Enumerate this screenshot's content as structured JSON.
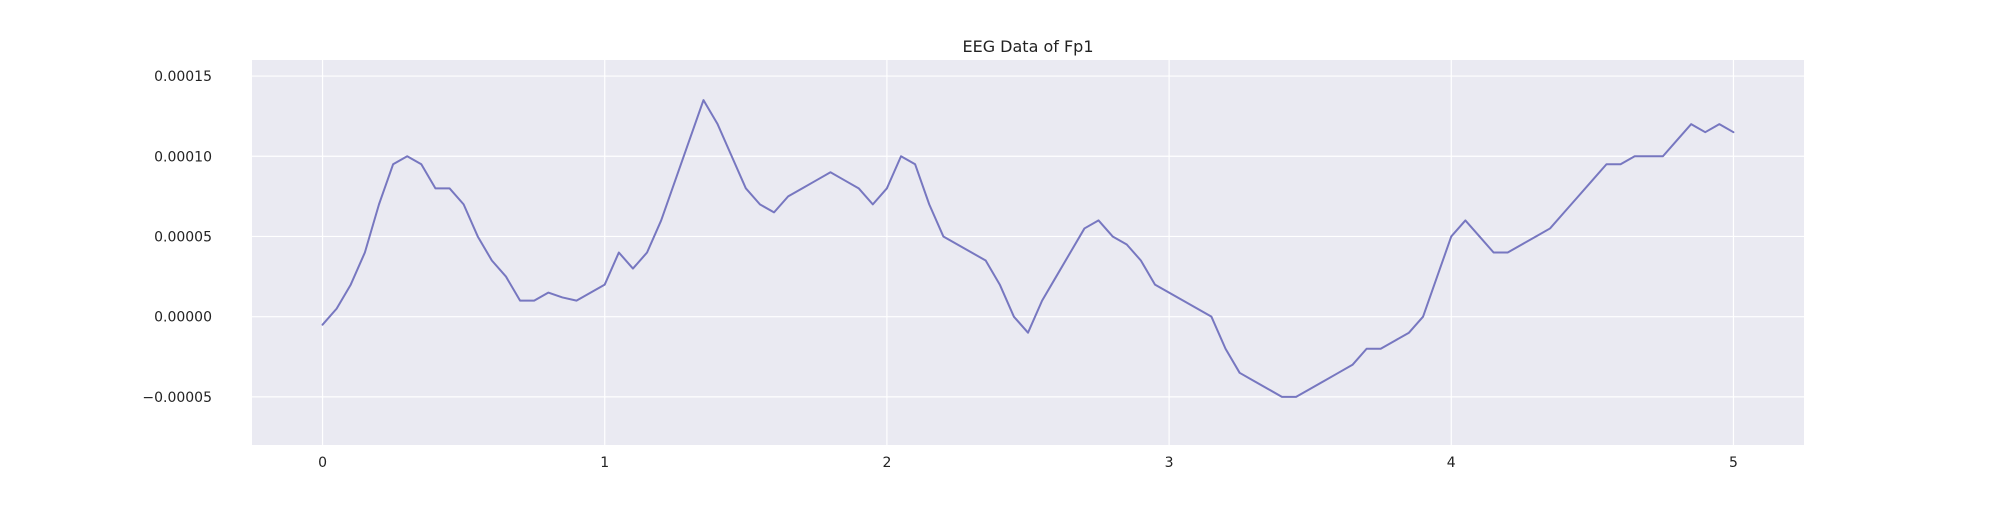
{
  "chart_data": {
    "type": "line",
    "title": "EEG Data of Fp1",
    "xlabel": "",
    "ylabel": "",
    "xlim": [
      -0.25,
      5.25
    ],
    "ylim": [
      -8e-05,
      0.00016
    ],
    "grid": true,
    "legend": "none",
    "x_ticks": [
      0,
      1,
      2,
      3,
      4,
      5
    ],
    "x_tick_labels": [
      "0",
      "1",
      "2",
      "3",
      "4",
      "5"
    ],
    "y_ticks": [
      -5e-05,
      0,
      5e-05,
      0.0001,
      0.00015
    ],
    "y_tick_labels": [
      "−0.00005",
      "0.00000",
      "0.00005",
      "0.00010",
      "0.00015"
    ],
    "colors": {
      "line": "#7777c0",
      "plot_background": "#eaeaf2",
      "grid": "#ffffff"
    },
    "series": [
      {
        "x": [
          0,
          0.05,
          0.1,
          0.15,
          0.2,
          0.25,
          0.3,
          0.35,
          0.4,
          0.45,
          0.5,
          0.55,
          0.6,
          0.65,
          0.7,
          0.75,
          0.8,
          0.85,
          0.9,
          0.95,
          1.0,
          1.05,
          1.1,
          1.15,
          1.2,
          1.25,
          1.3,
          1.35,
          1.4,
          1.45,
          1.5,
          1.55,
          1.6,
          1.65,
          1.7,
          1.75,
          1.8,
          1.85,
          1.9,
          1.95,
          2.0,
          2.05,
          2.1,
          2.15,
          2.2,
          2.25,
          2.3,
          2.35,
          2.4,
          2.45,
          2.5,
          2.55,
          2.6,
          2.65,
          2.7,
          2.75,
          2.8,
          2.85,
          2.9,
          2.95,
          3.0,
          3.05,
          3.1,
          3.15,
          3.2,
          3.25,
          3.3,
          3.35,
          3.4,
          3.45,
          3.5,
          3.55,
          3.6,
          3.65,
          3.7,
          3.75,
          3.8,
          3.85,
          3.9,
          3.95,
          4.0,
          4.05,
          4.1,
          4.15,
          4.2,
          4.25,
          4.3,
          4.35,
          4.4,
          4.45,
          4.5,
          4.55,
          4.6,
          4.65,
          4.7,
          4.75,
          4.8,
          4.85,
          4.9,
          4.95,
          5.0
        ],
        "values": [
          -5e-06,
          5e-06,
          2e-05,
          4e-05,
          7e-05,
          9.5e-05,
          0.0001,
          9.5e-05,
          8e-05,
          8e-05,
          7e-05,
          5e-05,
          3.5e-05,
          2.5e-05,
          1e-05,
          1e-05,
          1.5e-05,
          1.2e-05,
          1e-05,
          1.5e-05,
          2e-05,
          4e-05,
          3e-05,
          4e-05,
          6e-05,
          8.5e-05,
          0.00011,
          0.000135,
          0.00012,
          0.0001,
          8e-05,
          7e-05,
          6.5e-05,
          7.5e-05,
          8e-05,
          8.5e-05,
          9e-05,
          8.5e-05,
          8e-05,
          7e-05,
          8e-05,
          0.0001,
          9.5e-05,
          7e-05,
          5e-05,
          4.5e-05,
          4e-05,
          3.5e-05,
          2e-05,
          0.0,
          -1e-05,
          1e-05,
          2.5e-05,
          4e-05,
          5.5e-05,
          6e-05,
          5e-05,
          4.5e-05,
          3.5e-05,
          2e-05,
          1.5e-05,
          1e-05,
          5e-06,
          0.0,
          -2e-05,
          -3.5e-05,
          -4e-05,
          -4.5e-05,
          -5e-05,
          -5e-05,
          -4.5e-05,
          -4e-05,
          -3.5e-05,
          -3e-05,
          -2e-05,
          -2e-05,
          -1.5e-05,
          -1e-05,
          0.0,
          2.5e-05,
          5e-05,
          6e-05,
          5e-05,
          4e-05,
          4e-05,
          4.5e-05,
          5e-05,
          5.5e-05,
          6.5e-05,
          7.5e-05,
          8.5e-05,
          9.5e-05,
          9.5e-05,
          0.0001,
          0.0001,
          0.0001,
          0.00011,
          0.00012,
          0.000115,
          0.00012,
          0.000115
        ]
      }
    ]
  }
}
